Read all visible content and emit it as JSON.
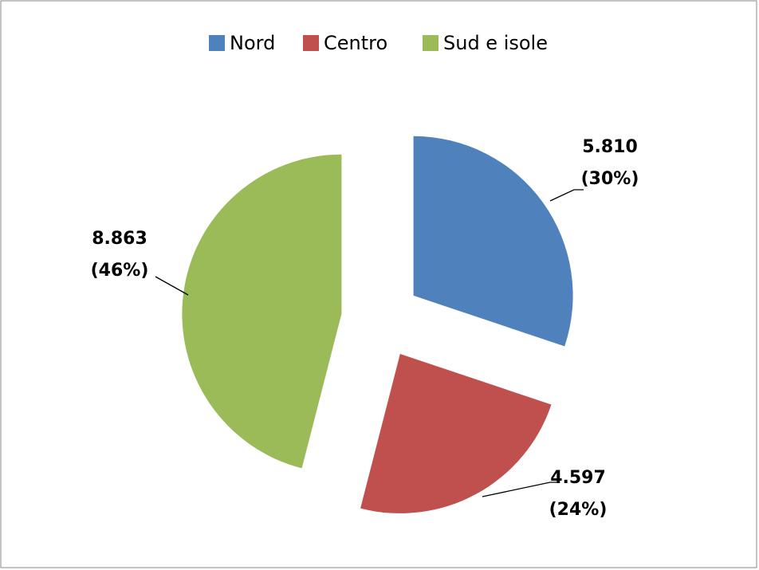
{
  "chart_data": {
    "type": "pie",
    "categories": [
      "Nord",
      "Centro",
      "Sud e isole"
    ],
    "values": [
      5810,
      4597,
      8863
    ],
    "value_labels": [
      [
        "5.810",
        "(30%)"
      ],
      [
        "4.597",
        "(24%)"
      ],
      [
        "8.863",
        "(46%)"
      ]
    ],
    "colors": [
      "#4f81bd",
      "#c0504d",
      "#9bbb59"
    ],
    "legend": "top"
  }
}
